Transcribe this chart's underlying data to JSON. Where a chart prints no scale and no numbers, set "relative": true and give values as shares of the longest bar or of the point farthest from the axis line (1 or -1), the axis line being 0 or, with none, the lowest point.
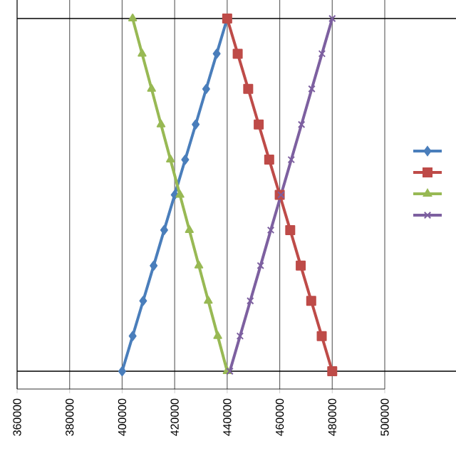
{
  "chart_data": {
    "type": "line",
    "relative": true,
    "grid": "x",
    "xlim": [
      360000,
      500000
    ],
    "xticks": [
      360000,
      380000,
      400000,
      420000,
      440000,
      460000,
      480000,
      500000
    ],
    "ref_lines": [
      {
        "axis": "y",
        "value": 1,
        "color": "#000000"
      },
      {
        "axis": "y",
        "value": 0.048,
        "color": "#000000"
      }
    ],
    "series": [
      {
        "color": "#4a7ebb",
        "marker": "diamond",
        "x": [
          400000,
          404000,
          408000,
          412000,
          416000,
          420000,
          424000,
          428000,
          432000,
          436000,
          440000
        ],
        "values": [
          0.048,
          0.143,
          0.238,
          0.333,
          0.429,
          0.524,
          0.619,
          0.714,
          0.81,
          0.905,
          1
        ]
      },
      {
        "color": "#be4b48",
        "marker": "square",
        "x": [
          440000,
          444000,
          448000,
          452000,
          456000,
          460000,
          464000,
          468000,
          472000,
          476000,
          480000
        ],
        "values": [
          1,
          0.905,
          0.81,
          0.714,
          0.619,
          0.524,
          0.429,
          0.333,
          0.238,
          0.143,
          0.048
        ]
      },
      {
        "color": "#98b954",
        "marker": "triangle",
        "x": [
          404000,
          407600,
          411200,
          414800,
          418400,
          422000,
          425600,
          429200,
          432800,
          436400,
          440000
        ],
        "values": [
          1,
          0.905,
          0.81,
          0.714,
          0.619,
          0.524,
          0.429,
          0.333,
          0.238,
          0.143,
          0.048
        ]
      },
      {
        "color": "#7d60a0",
        "marker": "cross",
        "x": [
          441000,
          444900,
          448800,
          452700,
          456600,
          460500,
          464400,
          468300,
          472200,
          476100,
          480000
        ],
        "values": [
          0.048,
          0.143,
          0.238,
          0.333,
          0.429,
          0.524,
          0.619,
          0.714,
          0.81,
          0.905,
          1
        ]
      }
    ]
  }
}
